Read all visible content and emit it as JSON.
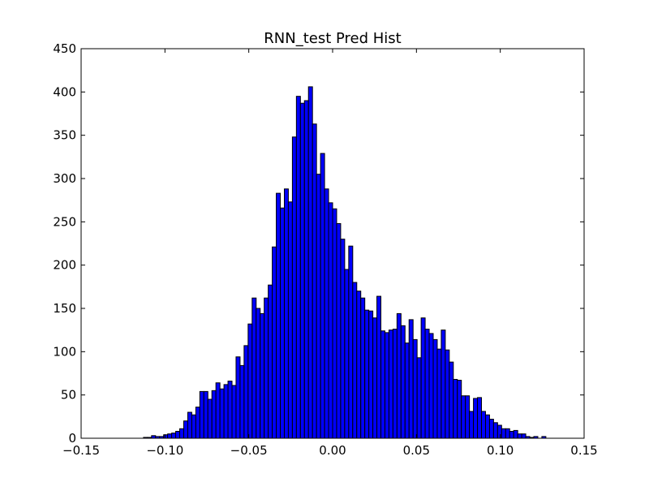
{
  "chart_data": {
    "type": "bar",
    "title": "RNN_test Pred Hist",
    "xlabel": "",
    "ylabel": "",
    "xlim": [
      -0.15,
      0.15
    ],
    "ylim": [
      0,
      450
    ],
    "x_ticks": [
      -0.15,
      -0.1,
      -0.05,
      0.0,
      0.05,
      0.1,
      0.15
    ],
    "x_tick_labels": [
      "−0.15",
      "−0.10",
      "−0.05",
      "0.00",
      "0.05",
      "0.10",
      "0.15"
    ],
    "y_ticks": [
      0,
      50,
      100,
      150,
      200,
      250,
      300,
      350,
      400,
      450
    ],
    "y_tick_labels": [
      "0",
      "50",
      "100",
      "150",
      "200",
      "250",
      "300",
      "350",
      "400",
      "450"
    ],
    "grid": false,
    "legend": "none",
    "bar_color": "#0000ff",
    "edge_color": "#000000",
    "bin_start": -0.1128,
    "bin_width": 0.0024,
    "counts": [
      1,
      1,
      3,
      2,
      2,
      4,
      5,
      6,
      8,
      11,
      20,
      30,
      27,
      36,
      54,
      54,
      45,
      55,
      64,
      57,
      62,
      66,
      61,
      94,
      84,
      107,
      132,
      162,
      150,
      144,
      162,
      177,
      221,
      283,
      266,
      288,
      273,
      348,
      395,
      387,
      390,
      406,
      363,
      305,
      329,
      288,
      272,
      265,
      248,
      230,
      195,
      222,
      180,
      170,
      162,
      148,
      147,
      139,
      164,
      124,
      122,
      125,
      126,
      144,
      130,
      110,
      137,
      114,
      93,
      139,
      126,
      121,
      114,
      103,
      125,
      102,
      88,
      68,
      67,
      49,
      49,
      31,
      46,
      47,
      31,
      27,
      22,
      18,
      15,
      11,
      11,
      8,
      9,
      5,
      5,
      2,
      1,
      2,
      0,
      2
    ]
  }
}
